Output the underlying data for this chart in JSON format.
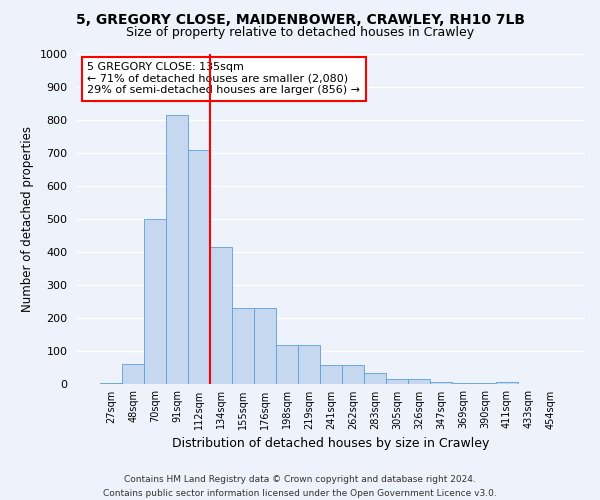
{
  "title1": "5, GREGORY CLOSE, MAIDENBOWER, CRAWLEY, RH10 7LB",
  "title2": "Size of property relative to detached houses in Crawley",
  "xlabel": "Distribution of detached houses by size in Crawley",
  "ylabel": "Number of detached properties",
  "footer1": "Contains HM Land Registry data © Crown copyright and database right 2024.",
  "footer2": "Contains public sector information licensed under the Open Government Licence v3.0.",
  "bar_labels": [
    "27sqm",
    "48sqm",
    "70sqm",
    "91sqm",
    "112sqm",
    "134sqm",
    "155sqm",
    "176sqm",
    "198sqm",
    "219sqm",
    "241sqm",
    "262sqm",
    "283sqm",
    "305sqm",
    "326sqm",
    "347sqm",
    "369sqm",
    "390sqm",
    "411sqm",
    "433sqm",
    "454sqm"
  ],
  "bar_values": [
    5,
    62,
    500,
    815,
    710,
    415,
    230,
    230,
    120,
    120,
    58,
    58,
    35,
    15,
    15,
    8,
    5,
    5,
    8,
    0,
    0
  ],
  "bar_color": "#c5d8f0",
  "bar_edge_color": "#5a9fd4",
  "vline_color": "red",
  "annotation_text": "5 GREGORY CLOSE: 135sqm\n← 71% of detached houses are smaller (2,080)\n29% of semi-detached houses are larger (856) →",
  "annotation_box_color": "white",
  "annotation_box_edge": "red",
  "ylim": [
    0,
    1000
  ],
  "yticks": [
    0,
    100,
    200,
    300,
    400,
    500,
    600,
    700,
    800,
    900,
    1000
  ],
  "bg_color": "#eef2fa",
  "grid_color": "white",
  "title1_fontsize": 10,
  "title2_fontsize": 9,
  "xlabel_fontsize": 9,
  "ylabel_fontsize": 8.5,
  "annotation_fontsize": 8,
  "footer_fontsize": 6.5
}
